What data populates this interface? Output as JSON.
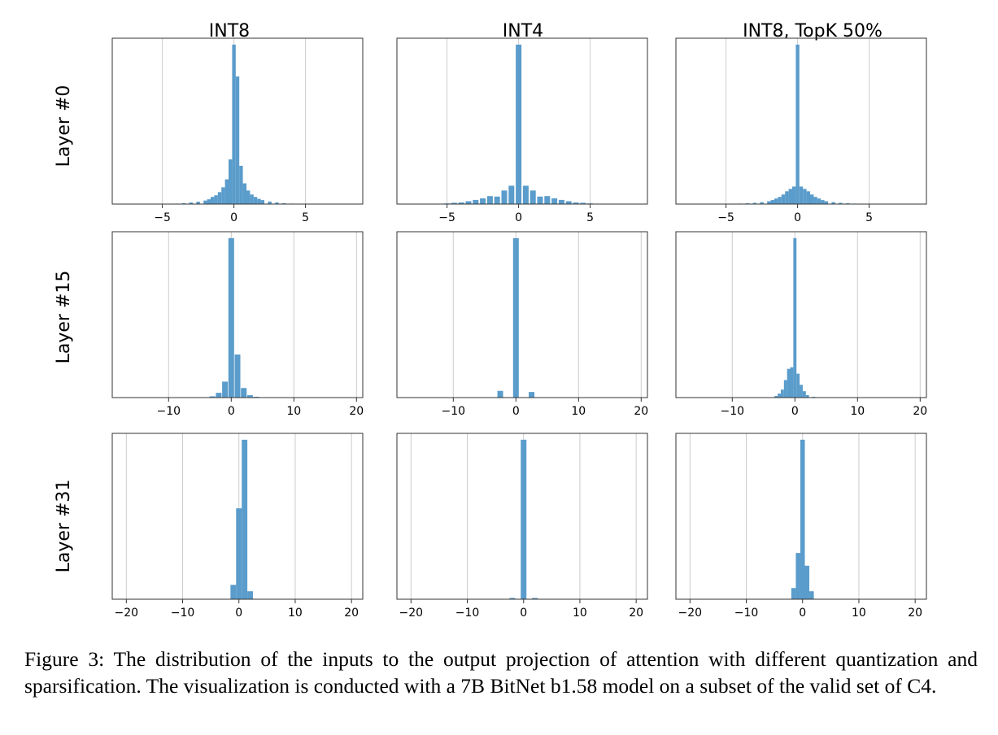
{
  "figure": {
    "column_titles": [
      "INT8",
      "INT4",
      "INT8, TopK 50%"
    ],
    "row_labels": [
      "Layer #0",
      "Layer #15",
      "Layer #31"
    ],
    "bar_color": "#5a9ccb",
    "grid_color": "#cccccc"
  },
  "caption": "Figure 3: The distribution of the inputs to the output projection of attention with different quantization and sparsification. The visualization is conducted with a 7B BitNet b1.58 model on a subset of the valid set of C4.",
  "chart_data": [
    {
      "type": "bar",
      "row": "Layer #0",
      "column": "INT8",
      "xlim": [
        -8.5,
        9
      ],
      "xticks": [
        -5,
        0,
        5
      ],
      "grid": true,
      "x": [
        -4,
        -3.5,
        -3,
        -2.5,
        -2,
        -1.75,
        -1.5,
        -1.25,
        -1,
        -0.75,
        -0.5,
        -0.25,
        0,
        0.25,
        0.5,
        0.75,
        1,
        1.25,
        1.5,
        1.75,
        2,
        2.5,
        3,
        3.5,
        4
      ],
      "values": [
        0.3,
        0.6,
        1.0,
        1.5,
        2.2,
        3.0,
        4.5,
        5.5,
        7.5,
        10.5,
        15.5,
        28,
        100,
        80,
        24,
        13,
        8.5,
        6,
        4.5,
        3.3,
        2.5,
        1.6,
        1.0,
        0.6,
        0.3
      ]
    },
    {
      "type": "bar",
      "row": "Layer #0",
      "column": "INT4",
      "xlim": [
        -8.5,
        9
      ],
      "xticks": [
        -5,
        0,
        5
      ],
      "grid": true,
      "x": [
        -5,
        -4.5,
        -4,
        -3.5,
        -3,
        -2.5,
        -2,
        -1.5,
        -1,
        -0.5,
        0,
        0.5,
        1,
        1.5,
        2,
        2.5,
        3,
        3.5,
        4,
        4.5,
        5
      ],
      "values": [
        0.4,
        0.8,
        1.0,
        1.8,
        2.6,
        3.6,
        5,
        4.7,
        8.5,
        11.5,
        100,
        11.5,
        8.5,
        4.7,
        5,
        3.6,
        2.6,
        1.8,
        1.0,
        0.8,
        0.4
      ]
    },
    {
      "type": "bar",
      "row": "Layer #0",
      "column": "INT8, TopK 50%",
      "xlim": [
        -8.5,
        9
      ],
      "xticks": [
        -5,
        0,
        5
      ],
      "grid": true,
      "x": [
        -4,
        -3.5,
        -3,
        -2.5,
        -2,
        -1.75,
        -1.5,
        -1.25,
        -1,
        -0.75,
        -0.5,
        -0.25,
        0,
        0.25,
        0.5,
        0.75,
        1,
        1.25,
        1.5,
        1.75,
        2,
        2.5,
        3,
        3.5,
        4
      ],
      "values": [
        0.3,
        0.5,
        0.8,
        1.2,
        1.8,
        2.5,
        3.5,
        4.5,
        6,
        8,
        9.5,
        11,
        100,
        11,
        9.5,
        8,
        6,
        4.5,
        3.5,
        2.5,
        1.8,
        1.2,
        0.8,
        0.5,
        0.3
      ]
    },
    {
      "type": "bar",
      "row": "Layer #15",
      "column": "INT8",
      "xlim": [
        -19,
        21
      ],
      "xticks": [
        -10,
        0,
        10,
        20
      ],
      "grid": true,
      "x": [
        -3,
        -2,
        -1,
        0,
        1,
        2,
        3,
        4
      ],
      "values": [
        0.8,
        3,
        10,
        100,
        27,
        6,
        1.5,
        0.5
      ]
    },
    {
      "type": "bar",
      "row": "Layer #15",
      "column": "INT4",
      "xlim": [
        -19,
        21
      ],
      "xticks": [
        -10,
        0,
        10,
        20
      ],
      "grid": true,
      "x": [
        -2.5,
        0,
        2.5
      ],
      "values": [
        4.2,
        100,
        3.5
      ]
    },
    {
      "type": "bar",
      "row": "Layer #15",
      "column": "INT8, TopK 50%",
      "xlim": [
        -19,
        21
      ],
      "xticks": [
        -10,
        0,
        10,
        20
      ],
      "grid": true,
      "x": [
        -3,
        -2.5,
        -2,
        -1.5,
        -1,
        -0.5,
        0,
        0.5,
        1,
        1.5,
        2,
        3
      ],
      "values": [
        1,
        2.5,
        5,
        11,
        18,
        19,
        100,
        15,
        8,
        4,
        1.5,
        0.5
      ]
    },
    {
      "type": "bar",
      "row": "Layer #31",
      "column": "INT8",
      "xlim": [
        -22.5,
        22
      ],
      "xticks": [
        -20,
        -10,
        0,
        10,
        20
      ],
      "grid": true,
      "x": [
        -1,
        0,
        1,
        2
      ],
      "values": [
        9,
        57,
        100,
        5
      ]
    },
    {
      "type": "bar",
      "row": "Layer #31",
      "column": "INT4",
      "xlim": [
        -22.5,
        22
      ],
      "xticks": [
        -20,
        -10,
        0,
        10,
        20
      ],
      "grid": true,
      "x": [
        -2,
        0,
        2
      ],
      "values": [
        0.8,
        100,
        0.8
      ]
    },
    {
      "type": "bar",
      "row": "Layer #31",
      "column": "INT8, TopK 50%",
      "xlim": [
        -22.5,
        22
      ],
      "xticks": [
        -20,
        -10,
        0,
        10,
        20
      ],
      "grid": true,
      "x": [
        -1.6,
        -0.8,
        0,
        0.8,
        1.6
      ],
      "values": [
        7,
        29,
        100,
        21,
        5
      ]
    }
  ]
}
